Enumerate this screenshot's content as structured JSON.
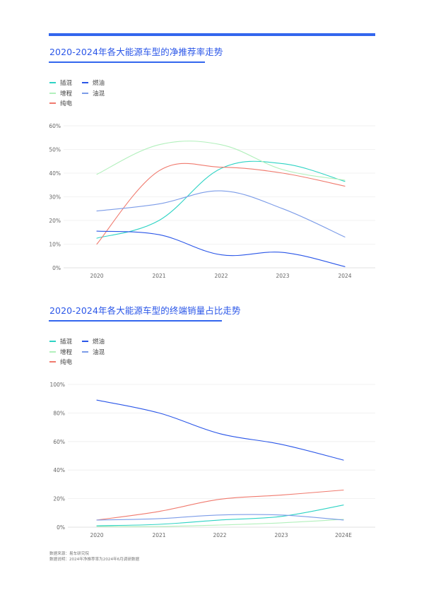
{
  "chart_data": [
    {
      "type": "line",
      "title": "2020-2024年各大能源车型的净推荐率走势",
      "categories": [
        "2020",
        "2021",
        "2022",
        "2023",
        "2024"
      ],
      "ylim": [
        0,
        60
      ],
      "yticks": [
        0,
        10,
        20,
        30,
        40,
        50,
        60
      ],
      "y_unit": "%",
      "grid": true,
      "legend_position": "top-left",
      "series": [
        {
          "name": "插混",
          "color": "#2ed3c4",
          "values": [
            12.5,
            20,
            42,
            44,
            36.5
          ]
        },
        {
          "name": "增程",
          "color": "#b2f0bc",
          "values": [
            39.5,
            52,
            52,
            41.5,
            37
          ]
        },
        {
          "name": "纯电",
          "color": "#f07a6e",
          "values": [
            10,
            41,
            42.5,
            40,
            34.5
          ]
        },
        {
          "name": "燃油",
          "color": "#2a56e8",
          "values": [
            15.5,
            14,
            5.5,
            6.5,
            0.5
          ]
        },
        {
          "name": "油混",
          "color": "#7c9ce8",
          "values": [
            24,
            27,
            32.5,
            25,
            13
          ]
        }
      ]
    },
    {
      "type": "line",
      "title": "2020-2024年各大能源车型的终端销量占比走势",
      "categories": [
        "2020",
        "2021",
        "2022",
        "2023",
        "2024E"
      ],
      "ylim": [
        0,
        100
      ],
      "yticks": [
        0,
        20,
        40,
        60,
        80,
        100
      ],
      "y_unit": "%",
      "grid": true,
      "legend_position": "top-left",
      "series": [
        {
          "name": "插混",
          "color": "#2ed3c4",
          "values": [
            1,
            2,
            5,
            7.5,
            15.5
          ]
        },
        {
          "name": "增程",
          "color": "#b2f0bc",
          "values": [
            0.5,
            0.5,
            1.5,
            3,
            5.5
          ]
        },
        {
          "name": "纯电",
          "color": "#f07a6e",
          "values": [
            5,
            11,
            19.5,
            22.5,
            26
          ]
        },
        {
          "name": "燃油",
          "color": "#2a56e8",
          "values": [
            89,
            80,
            65.5,
            58,
            47
          ]
        },
        {
          "name": "油混",
          "color": "#7c9ce8",
          "values": [
            5,
            6,
            8.5,
            8.5,
            5
          ]
        }
      ]
    }
  ],
  "footer": {
    "source": "数据来源：易车研究院",
    "note": "数据说明：2024年净推荐率为2024年6月调研数据"
  }
}
